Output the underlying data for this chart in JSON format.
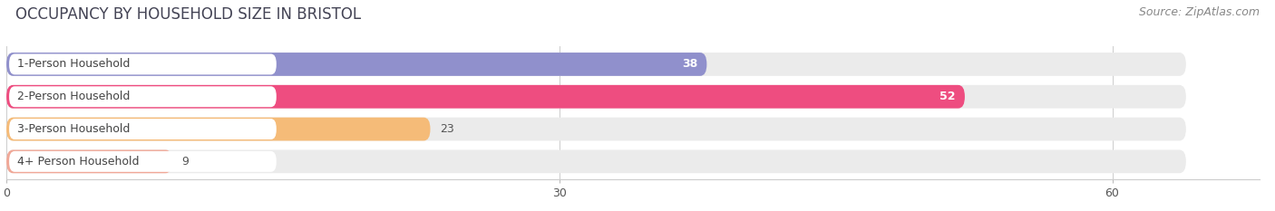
{
  "title": "OCCUPANCY BY HOUSEHOLD SIZE IN BRISTOL",
  "source": "Source: ZipAtlas.com",
  "categories": [
    "1-Person Household",
    "2-Person Household",
    "3-Person Household",
    "4+ Person Household"
  ],
  "values": [
    38,
    52,
    23,
    9
  ],
  "bar_colors": [
    "#9090cc",
    "#ee4d80",
    "#f5bb78",
    "#f0a898"
  ],
  "bar_bg_color": "#ebebeb",
  "background_color": "#ffffff",
  "xlim": [
    0,
    68
  ],
  "data_max": 60,
  "xticks": [
    0,
    30,
    60
  ],
  "label_color_inside": [
    "white",
    "white",
    "dark",
    "dark"
  ],
  "title_fontsize": 12,
  "source_fontsize": 9
}
